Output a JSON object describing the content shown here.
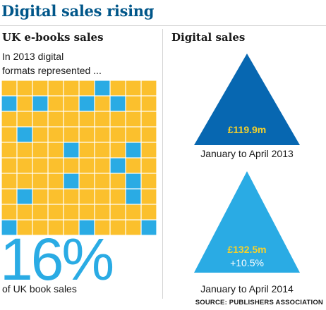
{
  "title": "Digital sales rising",
  "left": {
    "section_title": "UK e-books sales",
    "subtitle_line1": "In 2013 digital",
    "subtitle_line2": "formats represented ...",
    "big_value": "16%",
    "big_label": "of UK book sales"
  },
  "right": {
    "section_title": "Digital sales"
  },
  "source": "SOURCE: PUBLISHERS ASSOCIATION",
  "colors": {
    "title": "#005689",
    "grid_yellow": "#fbc02d",
    "grid_blue": "#2aabe4",
    "triangle_2013": "#0767b1",
    "triangle_2014": "#2aabe4",
    "value_text": "#f6d12a"
  },
  "chart_data": [
    {
      "type": "waffle",
      "rows": 10,
      "cols": 10,
      "total": 100,
      "highlighted": 16,
      "highlighted_cells": [
        [
          0,
          6
        ],
        [
          1,
          0
        ],
        [
          1,
          2
        ],
        [
          1,
          5
        ],
        [
          1,
          7
        ],
        [
          3,
          1
        ],
        [
          4,
          4
        ],
        [
          4,
          8
        ],
        [
          5,
          7
        ],
        [
          6,
          4
        ],
        [
          6,
          8
        ],
        [
          7,
          1
        ],
        [
          7,
          8
        ],
        [
          9,
          0
        ],
        [
          9,
          5
        ],
        [
          9,
          9
        ]
      ]
    },
    {
      "type": "pictogram",
      "shape": "triangle",
      "items": [
        {
          "label": "January to April 2013",
          "value": 119.9,
          "value_label": "£119.9m",
          "change_label": ""
        },
        {
          "label": "January to April 2014",
          "value": 132.5,
          "value_label": "£132.5m",
          "change_label": "+10.5%"
        }
      ]
    }
  ]
}
